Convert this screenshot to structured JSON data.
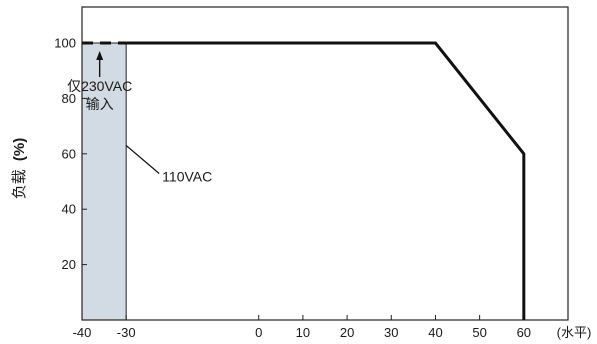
{
  "chart_data": {
    "type": "line",
    "title": "",
    "xlabel": "(水平)",
    "ylabel": "负载",
    "ylabel_unit": "(%)",
    "xlim": [
      -40,
      70
    ],
    "ylim": [
      0,
      113
    ],
    "xticks": [
      -40,
      -30,
      0,
      10,
      20,
      30,
      40,
      50,
      60
    ],
    "yticks": [
      20,
      40,
      60,
      80,
      100
    ],
    "grid": false,
    "legend": "none",
    "series": [
      {
        "style": "dashed",
        "x": [
          -40,
          -30
        ],
        "y": [
          100,
          100
        ]
      },
      {
        "style": "solid",
        "x": [
          -30,
          40,
          60,
          60
        ],
        "y": [
          100,
          100,
          60,
          0
        ]
      }
    ],
    "shaded_region": {
      "x": [
        -40,
        -30
      ],
      "y": [
        0,
        100
      ],
      "color": "#d2dbe3"
    },
    "annotations": [
      {
        "text_lines": [
          "仅230VAC",
          "输入"
        ],
        "arrow_to": [
          -36,
          100
        ]
      },
      {
        "text": "110VAC",
        "arrow_to": [
          -30,
          63
        ]
      }
    ],
    "colors": {
      "line": "#111111",
      "shade": "#d2dbe3",
      "frame": "#222222"
    }
  }
}
